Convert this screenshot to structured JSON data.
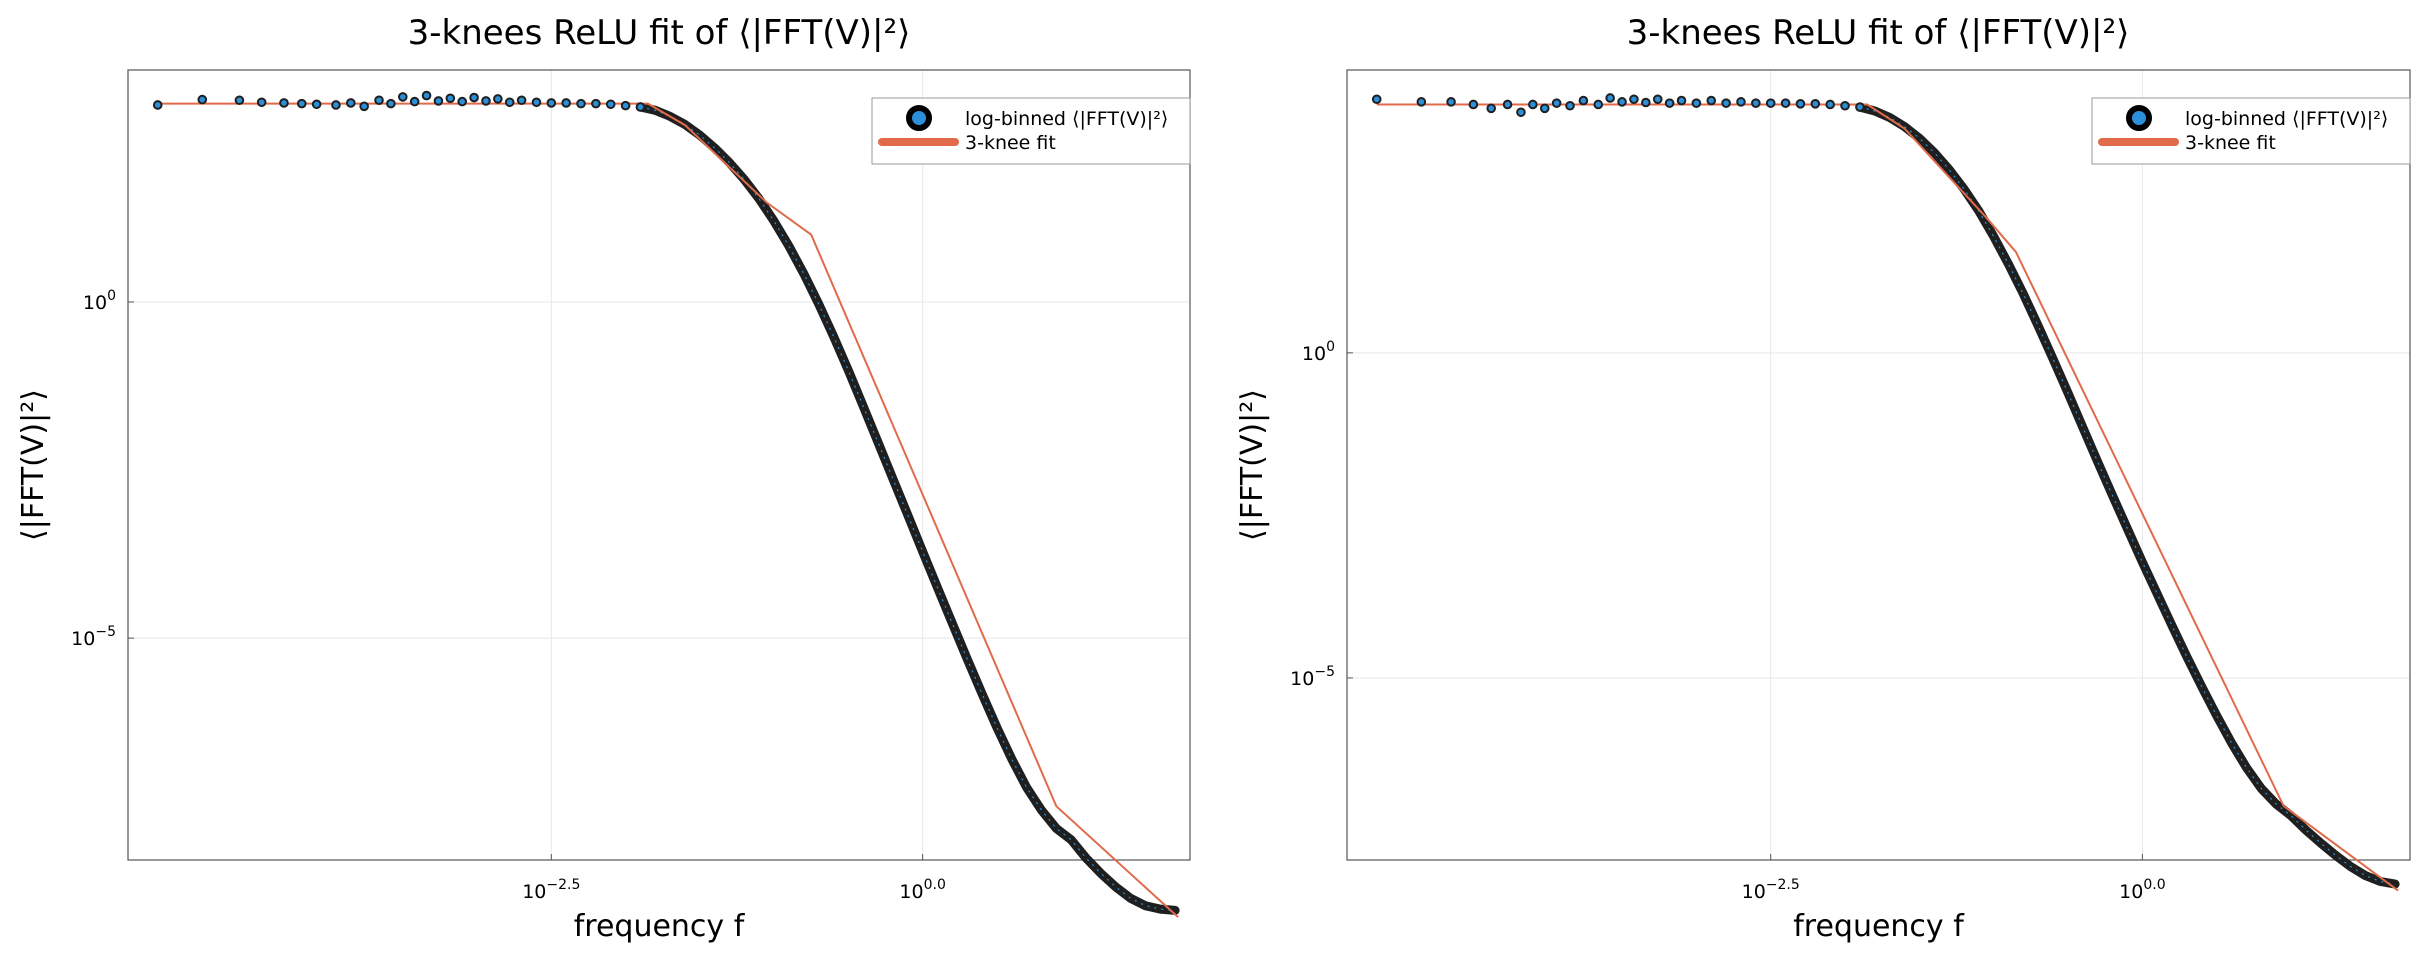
{
  "chart_data": [
    {
      "type": "scatter",
      "title": "3-knees ReLU fit of ⟨|FFT(V)|²⟩",
      "xlabel": "frequency f",
      "ylabel": "⟨|FFT(V)|²⟩",
      "xscale": "log10",
      "yscale": "log10",
      "xlim_log10": [
        -5.35,
        1.8
      ],
      "ylim_log10": [
        -8.3,
        3.45
      ],
      "x_ticks": [
        {
          "base": "10",
          "exp": "−2.5",
          "value_log10": -2.5
        },
        {
          "base": "10",
          "exp": "0.0",
          "value_log10": 0.0
        }
      ],
      "y_ticks": [
        {
          "base": "10",
          "exp": "0",
          "value_log10": 0
        },
        {
          "base": "10",
          "exp": "−5",
          "value_log10": -5
        }
      ],
      "grid": true,
      "legend_position": "top-right",
      "series": [
        {
          "name": "log-binned ⟨|FFT(V)|²⟩",
          "kind": "scatter",
          "color": "#1f1f1f",
          "fill": "#2b90d9",
          "points_log10": [
            [
              -5.15,
              2.93
            ],
            [
              -4.85,
              3.01
            ],
            [
              -4.6,
              3.0
            ],
            [
              -4.45,
              2.97
            ],
            [
              -4.3,
              2.96
            ],
            [
              -4.18,
              2.95
            ],
            [
              -4.08,
              2.94
            ],
            [
              -3.95,
              2.93
            ],
            [
              -3.85,
              2.96
            ],
            [
              -3.76,
              2.91
            ],
            [
              -3.66,
              3.0
            ],
            [
              -3.58,
              2.95
            ],
            [
              -3.5,
              3.05
            ],
            [
              -3.42,
              2.98
            ],
            [
              -3.34,
              3.07
            ],
            [
              -3.26,
              2.99
            ],
            [
              -3.18,
              3.03
            ],
            [
              -3.1,
              2.98
            ],
            [
              -3.02,
              3.04
            ],
            [
              -2.94,
              2.99
            ],
            [
              -2.86,
              3.02
            ],
            [
              -2.78,
              2.97
            ],
            [
              -2.7,
              3.0
            ],
            [
              -2.6,
              2.97
            ],
            [
              -2.5,
              2.96
            ],
            [
              -2.4,
              2.96
            ],
            [
              -2.3,
              2.95
            ],
            [
              -2.2,
              2.95
            ],
            [
              -2.1,
              2.94
            ],
            [
              -2.0,
              2.92
            ],
            [
              -1.9,
              2.9
            ]
          ],
          "curve_log10": [
            [
              -1.9,
              2.9
            ],
            [
              -1.8,
              2.85
            ],
            [
              -1.7,
              2.76
            ],
            [
              -1.6,
              2.64
            ],
            [
              -1.5,
              2.48
            ],
            [
              -1.4,
              2.29
            ],
            [
              -1.3,
              2.07
            ],
            [
              -1.2,
              1.82
            ],
            [
              -1.1,
              1.53
            ],
            [
              -1.0,
              1.2
            ],
            [
              -0.9,
              0.83
            ],
            [
              -0.8,
              0.42
            ],
            [
              -0.7,
              -0.03
            ],
            [
              -0.6,
              -0.51
            ],
            [
              -0.5,
              -1.02
            ],
            [
              -0.4,
              -1.55
            ],
            [
              -0.3,
              -2.09
            ],
            [
              -0.2,
              -2.63
            ],
            [
              -0.1,
              -3.17
            ],
            [
              0.0,
              -3.71
            ],
            [
              0.1,
              -4.25
            ],
            [
              0.2,
              -4.78
            ],
            [
              0.3,
              -5.31
            ],
            [
              0.4,
              -5.83
            ],
            [
              0.5,
              -6.33
            ],
            [
              0.6,
              -6.8
            ],
            [
              0.7,
              -7.22
            ],
            [
              0.8,
              -7.56
            ],
            [
              0.9,
              -7.83
            ],
            [
              1.0,
              -8.0
            ],
            [
              1.1,
              -8.27
            ],
            [
              1.2,
              -8.5
            ],
            [
              1.3,
              -8.7
            ],
            [
              1.4,
              -8.87
            ],
            [
              1.5,
              -8.98
            ],
            [
              1.6,
              -9.03
            ],
            [
              1.7,
              -9.05
            ]
          ]
        },
        {
          "name": "3-knee fit",
          "kind": "line",
          "color": "#e06a4a",
          "points_log10": [
            [
              -5.15,
              2.95
            ],
            [
              -1.85,
              2.95
            ],
            [
              -1.6,
              2.63
            ],
            [
              -1.05,
              1.48
            ],
            [
              -0.75,
              1.0
            ],
            [
              0.9,
              -7.5
            ],
            [
              1.72,
              -9.15
            ]
          ]
        }
      ]
    },
    {
      "type": "scatter",
      "title": "3-knees ReLU fit of ⟨|FFT(V)|²⟩",
      "xlabel": "frequency f",
      "ylabel": "⟨|FFT(V)|²⟩",
      "xscale": "log10",
      "yscale": "log10",
      "xlim_log10": [
        -5.35,
        1.8
      ],
      "ylim_log10": [
        -7.8,
        4.35
      ],
      "x_ticks": [
        {
          "base": "10",
          "exp": "−2.5",
          "value_log10": -2.5
        },
        {
          "base": "10",
          "exp": "0.0",
          "value_log10": 0.0
        }
      ],
      "y_ticks": [
        {
          "base": "10",
          "exp": "0",
          "value_log10": 0
        },
        {
          "base": "10",
          "exp": "−5",
          "value_log10": -5
        }
      ],
      "grid": true,
      "legend_position": "top-right",
      "series": [
        {
          "name": "log-binned ⟨|FFT(V)|²⟩",
          "kind": "scatter",
          "color": "#1f1f1f",
          "fill": "#2b90d9",
          "points_log10": [
            [
              -5.15,
              3.9
            ],
            [
              -4.85,
              3.86
            ],
            [
              -4.65,
              3.86
            ],
            [
              -4.5,
              3.82
            ],
            [
              -4.38,
              3.76
            ],
            [
              -4.27,
              3.82
            ],
            [
              -4.18,
              3.7
            ],
            [
              -4.1,
              3.82
            ],
            [
              -4.02,
              3.76
            ],
            [
              -3.94,
              3.84
            ],
            [
              -3.85,
              3.8
            ],
            [
              -3.76,
              3.88
            ],
            [
              -3.66,
              3.82
            ],
            [
              -3.58,
              3.92
            ],
            [
              -3.5,
              3.86
            ],
            [
              -3.42,
              3.9
            ],
            [
              -3.34,
              3.85
            ],
            [
              -3.26,
              3.9
            ],
            [
              -3.18,
              3.84
            ],
            [
              -3.1,
              3.88
            ],
            [
              -3.0,
              3.84
            ],
            [
              -2.9,
              3.88
            ],
            [
              -2.8,
              3.84
            ],
            [
              -2.7,
              3.86
            ],
            [
              -2.6,
              3.84
            ],
            [
              -2.5,
              3.84
            ],
            [
              -2.4,
              3.84
            ],
            [
              -2.3,
              3.83
            ],
            [
              -2.2,
              3.83
            ],
            [
              -2.1,
              3.82
            ],
            [
              -2.0,
              3.8
            ],
            [
              -1.9,
              3.78
            ]
          ],
          "curve_log10": [
            [
              -1.9,
              3.78
            ],
            [
              -1.8,
              3.72
            ],
            [
              -1.7,
              3.62
            ],
            [
              -1.6,
              3.48
            ],
            [
              -1.5,
              3.3
            ],
            [
              -1.4,
              3.08
            ],
            [
              -1.3,
              2.82
            ],
            [
              -1.2,
              2.52
            ],
            [
              -1.1,
              2.18
            ],
            [
              -1.0,
              1.79
            ],
            [
              -0.9,
              1.36
            ],
            [
              -0.8,
              0.9
            ],
            [
              -0.7,
              0.41
            ],
            [
              -0.6,
              -0.1
            ],
            [
              -0.5,
              -0.62
            ],
            [
              -0.4,
              -1.15
            ],
            [
              -0.3,
              -1.68
            ],
            [
              -0.2,
              -2.2
            ],
            [
              -0.1,
              -2.71
            ],
            [
              0.0,
              -3.22
            ],
            [
              0.1,
              -3.71
            ],
            [
              0.2,
              -4.2
            ],
            [
              0.3,
              -4.68
            ],
            [
              0.4,
              -5.14
            ],
            [
              0.5,
              -5.58
            ],
            [
              0.6,
              -6.0
            ],
            [
              0.7,
              -6.38
            ],
            [
              0.8,
              -6.7
            ],
            [
              0.9,
              -6.94
            ],
            [
              1.0,
              -7.12
            ],
            [
              1.1,
              -7.34
            ],
            [
              1.2,
              -7.54
            ],
            [
              1.3,
              -7.73
            ],
            [
              1.4,
              -7.9
            ],
            [
              1.5,
              -8.04
            ],
            [
              1.6,
              -8.13
            ],
            [
              1.7,
              -8.17
            ]
          ]
        },
        {
          "name": "3-knee fit",
          "kind": "line",
          "color": "#e06a4a",
          "points_log10": [
            [
              -5.15,
              3.82
            ],
            [
              -1.85,
              3.82
            ],
            [
              -1.6,
              3.45
            ],
            [
              -1.05,
              2.08
            ],
            [
              -0.85,
              1.55
            ],
            [
              0.95,
              -6.97
            ],
            [
              1.72,
              -8.27
            ]
          ]
        }
      ]
    }
  ]
}
